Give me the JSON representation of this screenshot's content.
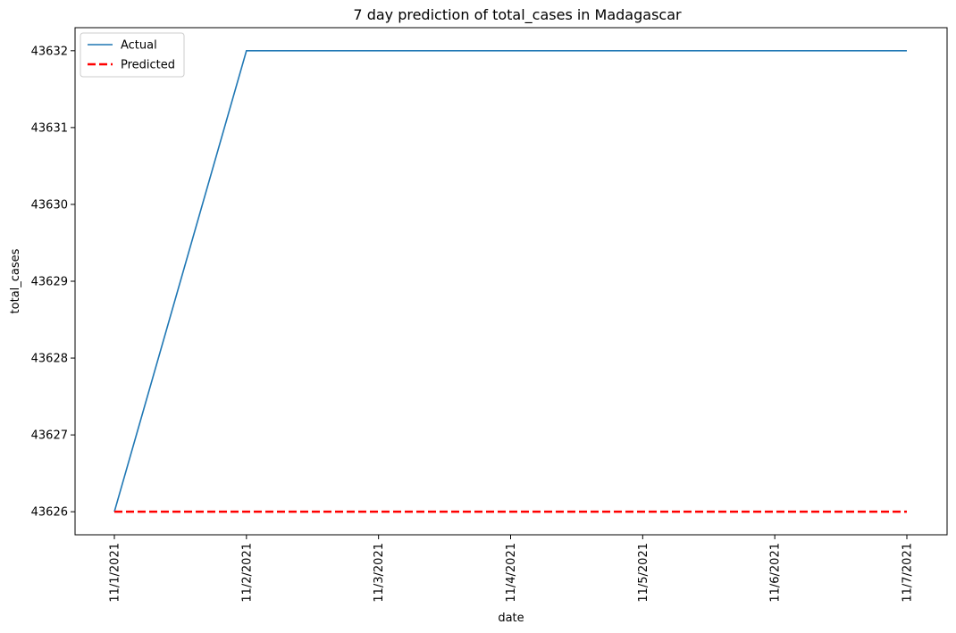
{
  "chart_data": {
    "type": "line",
    "title": "7 day prediction of total_cases in Madagascar",
    "xlabel": "date",
    "ylabel": "total_cases",
    "categories": [
      "11/1/2021",
      "11/2/2021",
      "11/3/2021",
      "11/4/2021",
      "11/5/2021",
      "11/6/2021",
      "11/7/2021"
    ],
    "y_ticks": [
      43626,
      43627,
      43628,
      43629,
      43630,
      43631,
      43632
    ],
    "ylim": [
      43625.7,
      43632.3
    ],
    "grid": false,
    "legend_position": "top-left",
    "series": [
      {
        "name": "Actual",
        "values": [
          43626,
          43632,
          43632,
          43632,
          43632,
          43632,
          43632
        ],
        "color": "#1f77b4",
        "style": "solid"
      },
      {
        "name": "Predicted",
        "values": [
          43626,
          43626,
          43626,
          43626,
          43626,
          43626,
          43626
        ],
        "color": "#ff0000",
        "style": "dashed"
      }
    ]
  }
}
